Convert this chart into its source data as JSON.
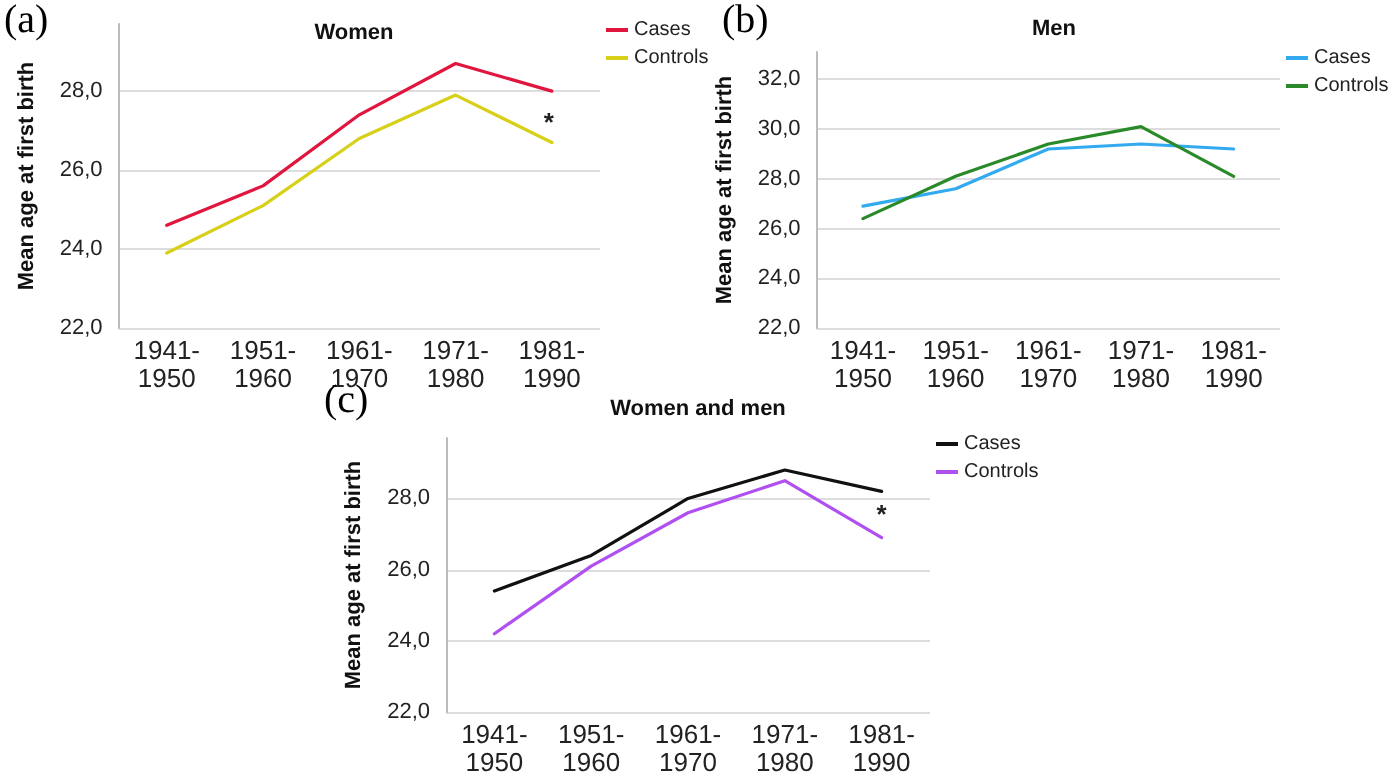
{
  "chart_data": [
    {
      "type": "line",
      "title": "Women",
      "ylabel": "Mean age at first birth",
      "annotations": [
        "(a)",
        "*"
      ],
      "categories": [
        "1941-\n1950",
        "1951-\n1960",
        "1961-\n1970",
        "1971-\n1980",
        "1981-\n1990"
      ],
      "series": [
        {
          "name": "Cases",
          "color": "#e0163e",
          "values": [
            24.6,
            25.6,
            27.4,
            28.7,
            28.0
          ]
        },
        {
          "name": "Controls",
          "color": "#d8d018",
          "values": [
            23.9,
            25.1,
            26.8,
            27.9,
            26.7
          ]
        }
      ],
      "ylim": [
        22,
        29.7
      ],
      "yticks": [
        {
          "value": 22,
          "label": "22,0"
        },
        {
          "value": 24,
          "label": "24,0"
        },
        {
          "value": 26,
          "label": "26,0"
        },
        {
          "value": 28,
          "label": "28,0"
        }
      ],
      "grid": "y",
      "legend": "top right",
      "marker": "none",
      "line_style": "solid"
    },
    {
      "type": "line",
      "title": "Men",
      "ylabel": "Mean age at first birth",
      "annotations": [
        "(b)"
      ],
      "categories": [
        "1941-\n1950",
        "1951-\n1960",
        "1961-\n1970",
        "1971-\n1980",
        "1981-\n1990"
      ],
      "series": [
        {
          "name": "Cases",
          "color": "#33aaf0",
          "values": [
            26.9,
            27.6,
            29.2,
            29.4,
            29.2
          ]
        },
        {
          "name": "Controls",
          "color": "#2a8a2a",
          "values": [
            26.4,
            28.1,
            29.4,
            30.1,
            28.1
          ]
        }
      ],
      "ylim": [
        22,
        33.1
      ],
      "yticks": [
        {
          "value": 22,
          "label": "22,0"
        },
        {
          "value": 24,
          "label": "24,0"
        },
        {
          "value": 26,
          "label": "26,0"
        },
        {
          "value": 28,
          "label": "28,0"
        },
        {
          "value": 30,
          "label": "30,0"
        },
        {
          "value": 32,
          "label": "32,0"
        }
      ],
      "grid": "y",
      "legend": "top right",
      "marker": "none",
      "line_style": "solid"
    },
    {
      "type": "line",
      "title": "Women and men",
      "ylabel": "Mean age at first birth",
      "annotations": [
        "(c)",
        "*"
      ],
      "categories": [
        "1941-\n1950",
        "1951-\n1960",
        "1961-\n1970",
        "1971-\n1980",
        "1981-\n1990"
      ],
      "series": [
        {
          "name": "Cases",
          "color": "#111111",
          "values": [
            25.4,
            26.4,
            28.0,
            28.8,
            28.2
          ]
        },
        {
          "name": "Controls",
          "color": "#b050f0",
          "values": [
            24.2,
            26.1,
            27.6,
            28.5,
            26.9
          ]
        }
      ],
      "ylim": [
        22,
        29.7
      ],
      "yticks": [
        {
          "value": 22,
          "label": "22,0"
        },
        {
          "value": 24,
          "label": "24,0"
        },
        {
          "value": 26,
          "label": "26,0"
        },
        {
          "value": 28,
          "label": "28,0"
        }
      ],
      "grid": "y",
      "legend": "top right",
      "marker": "none",
      "line_style": "solid"
    }
  ]
}
